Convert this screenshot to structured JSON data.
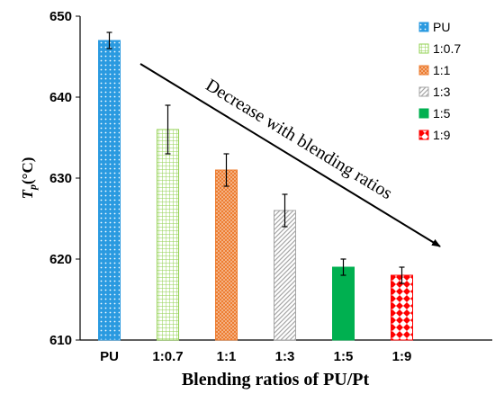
{
  "chart_data": {
    "type": "bar",
    "categories": [
      "PU",
      "1:0.7",
      "1:1",
      "1:3",
      "1:5",
      "1:9"
    ],
    "values": [
      647,
      636,
      631,
      626,
      619,
      618
    ],
    "errors": [
      1,
      3,
      2,
      2,
      1,
      1
    ],
    "colors": [
      "#2a9ae0",
      "#92d050",
      "#ed7d31",
      "#a6a6a6",
      "#00b050",
      "#ff0000"
    ],
    "patterns": [
      "dots",
      "grid",
      "check",
      "diagonal",
      "solid",
      "diamond"
    ],
    "legend": [
      "PU",
      "1:0.7",
      "1:1",
      "1:3",
      "1:5",
      "1:9"
    ],
    "legend_position": "right",
    "xlabel": "Blending ratios of PU/Pt",
    "ylabel_main": "T",
    "ylabel_sub": "p",
    "ylabel_unit": "(°C)",
    "ylim": [
      610,
      650
    ],
    "yticks": [
      610,
      620,
      630,
      640,
      650
    ],
    "annotation": "Decrease with blending ratios",
    "grid": false
  }
}
